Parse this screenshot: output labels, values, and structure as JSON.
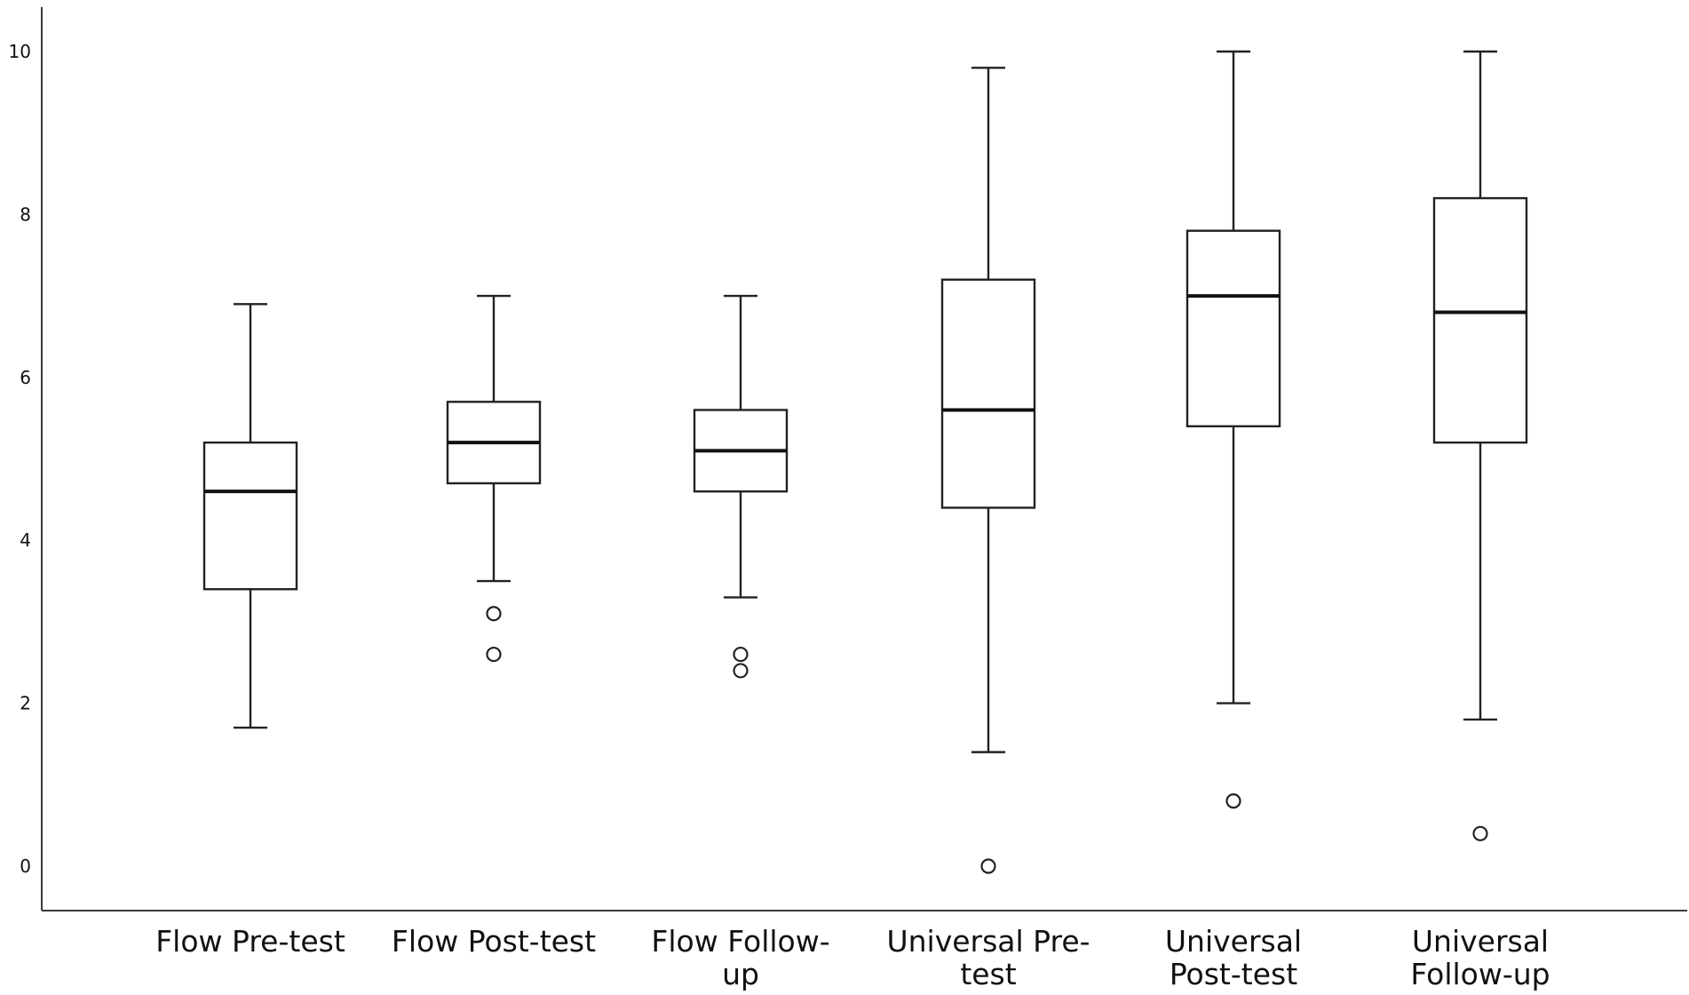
{
  "chart_data": {
    "type": "boxplot",
    "title": "",
    "xlabel": "",
    "ylabel": "",
    "ylim": [
      0,
      10
    ],
    "yticks": [
      "0",
      "2",
      "4",
      "6",
      "8",
      "10"
    ],
    "grid": false,
    "legend": "none",
    "categories": [
      [
        "Flow Pre-test"
      ],
      [
        "Flow Post-test"
      ],
      [
        "Flow Follow-",
        "up"
      ],
      [
        "Universal Pre-",
        "test"
      ],
      [
        "Universal",
        "Post-test"
      ],
      [
        "Universal",
        "Follow-up"
      ]
    ],
    "boxes": [
      {
        "min": 1.7,
        "q1": 3.4,
        "median": 4.6,
        "q3": 5.2,
        "max": 6.9,
        "outliers": []
      },
      {
        "min": 3.5,
        "q1": 4.7,
        "median": 5.2,
        "q3": 5.7,
        "max": 7.0,
        "outliers": [
          3.1,
          2.6
        ]
      },
      {
        "min": 3.3,
        "q1": 4.6,
        "median": 5.1,
        "q3": 5.6,
        "max": 7.0,
        "outliers": [
          2.6,
          2.4
        ]
      },
      {
        "min": 1.4,
        "q1": 4.4,
        "median": 5.6,
        "q3": 7.2,
        "max": 9.8,
        "outliers": [
          0.0
        ]
      },
      {
        "min": 2.0,
        "q1": 5.4,
        "median": 7.0,
        "q3": 7.8,
        "max": 10.0,
        "outliers": [
          0.8
        ]
      },
      {
        "min": 1.8,
        "q1": 5.2,
        "median": 6.8,
        "q3": 8.2,
        "max": 10.0,
        "outliers": [
          0.4
        ]
      }
    ]
  }
}
